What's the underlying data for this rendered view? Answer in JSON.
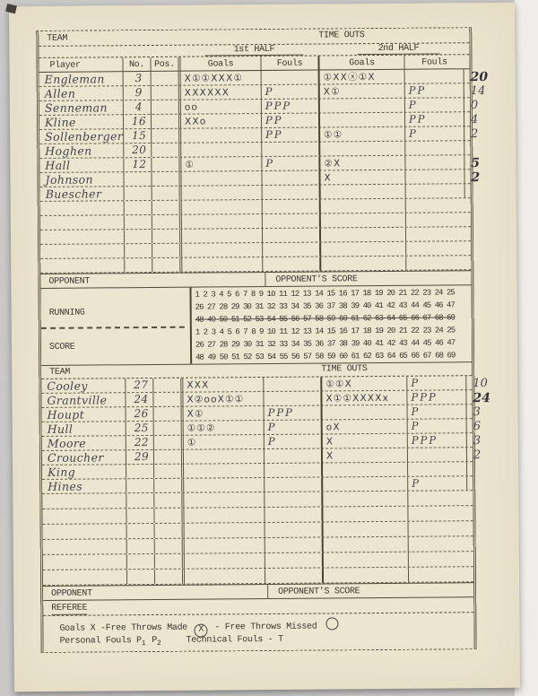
{
  "header": {
    "team_label": "TEAM",
    "timeouts_label": "TIME OUTS",
    "half1": "1st HALF",
    "half2": "2nd HALF"
  },
  "columns": {
    "player": "Player",
    "no": "No.",
    "pos": "Pos.",
    "goals": "Goals",
    "fouls": "Fouls"
  },
  "team1": {
    "rows": [
      {
        "name": "Engleman",
        "no": "3",
        "pos": "",
        "g1": "X①①XXX①",
        "f1": "",
        "g2": "①XXⓧ①X",
        "f2": "",
        "total": "20",
        "emphasis": true
      },
      {
        "name": "Allen",
        "no": "9",
        "pos": "",
        "g1": "XXXXXX",
        "f1": "P",
        "g2": "X①",
        "f2": "PP",
        "total": "14",
        "emphasis": false
      },
      {
        "name": "Senneman",
        "no": "4",
        "pos": "",
        "g1": "oo",
        "f1": "PPP",
        "g2": "",
        "f2": "P",
        "total": "0",
        "emphasis": false
      },
      {
        "name": "Kline",
        "no": "16",
        "pos": "",
        "g1": "XXo",
        "f1": "PP",
        "g2": "",
        "f2": "PP",
        "total": "4",
        "emphasis": false
      },
      {
        "name": "Sollenberger",
        "no": "15",
        "pos": "",
        "g1": "",
        "f1": "PP",
        "g2": "①①",
        "f2": "P",
        "total": "2",
        "emphasis": false
      },
      {
        "name": "Hoghen",
        "no": "20",
        "pos": "",
        "g1": "",
        "f1": "",
        "g2": "",
        "f2": "",
        "total": "",
        "emphasis": false
      },
      {
        "name": "Hall",
        "no": "12",
        "pos": "",
        "g1": "①",
        "f1": "P",
        "g2": "②X",
        "f2": "",
        "total": "5",
        "emphasis": true
      },
      {
        "name": "Johnson",
        "no": "",
        "pos": "",
        "g1": "",
        "f1": "",
        "g2": "X",
        "f2": "",
        "total": "2",
        "emphasis": true
      },
      {
        "name": "Buescher",
        "no": "",
        "pos": "",
        "g1": "",
        "f1": "",
        "g2": "",
        "f2": "",
        "total": "",
        "emphasis": false
      }
    ],
    "opponent_label": "OPPONENT",
    "opponent_score_label": "OPPONENT'S SCORE"
  },
  "running_score": {
    "label_line1": "RUNNING",
    "label_line2": "SCORE",
    "lines": [
      "1 2 3 4 5 6 7 8 9 10 11 12 13 14 15 16 17 18 19 20 21 22 23 24 25",
      "26 27 28 29 30 31 32 33 34 35 36 37 38 39 40 41 42 43 44 45 46 47",
      "48 49 50 51 52 53 54 55 56 57 58 59 60 61 62 63 64 65 66 67 68 69"
    ]
  },
  "team2": {
    "team_label": "TEAM",
    "timeouts_label": "TIME OUTS",
    "rows": [
      {
        "name": "Cooley",
        "no": "27",
        "pos": "",
        "g1": "XXX",
        "f1": "",
        "g2": "①①X",
        "f2": "P",
        "total": "10",
        "emphasis": false
      },
      {
        "name": "Grantville",
        "no": "24",
        "pos": "",
        "g1": "X②ooX①①",
        "f1": "",
        "g2": "X①①XXXXx",
        "f2": "PPP",
        "total": "24",
        "emphasis": true
      },
      {
        "name": "Houpt",
        "no": "26",
        "pos": "",
        "g1": "X①",
        "f1": "PPP",
        "g2": "",
        "f2": "P",
        "total": "3",
        "emphasis": false
      },
      {
        "name": "Hull",
        "no": "25",
        "pos": "",
        "g1": "①①②",
        "f1": "P",
        "g2": "oX",
        "f2": "P",
        "total": "6",
        "emphasis": false
      },
      {
        "name": "Moore",
        "no": "22",
        "pos": "",
        "g1": "①",
        "f1": "P",
        "g2": "X",
        "f2": "PPP",
        "total": "3",
        "emphasis": false
      },
      {
        "name": "Croucher",
        "no": "29",
        "pos": "",
        "g1": "",
        "f1": "",
        "g2": "X",
        "f2": "",
        "total": "2",
        "emphasis": false
      },
      {
        "name": "King",
        "no": "",
        "pos": "",
        "g1": "",
        "f1": "",
        "g2": "",
        "f2": "",
        "total": "",
        "emphasis": false
      },
      {
        "name": "Hines",
        "no": "",
        "pos": "",
        "g1": "",
        "f1": "",
        "g2": "",
        "f2": "P",
        "total": "",
        "emphasis": false
      }
    ],
    "opponent_label": "OPPONENT",
    "opponent_score_label": "OPPONENT'S SCORE"
  },
  "footer": {
    "referee_label": "REFEREE",
    "legend_goals": "Goals X -Free Throws Made",
    "legend_ftm_symbol": "X",
    "legend_missed": "- Free Throws Missed",
    "legend_personal_a": "Personal Fouls P",
    "legend_sub1": "1",
    "legend_personal_b": "P",
    "legend_sub2": "2",
    "legend_technical": "Technical Fouls  - T"
  },
  "colors": {
    "paper": "#ece5cf",
    "background": "#c9c8c6",
    "ink": "#3a362f",
    "pencil": "#45444c",
    "line": "#564f3f"
  }
}
